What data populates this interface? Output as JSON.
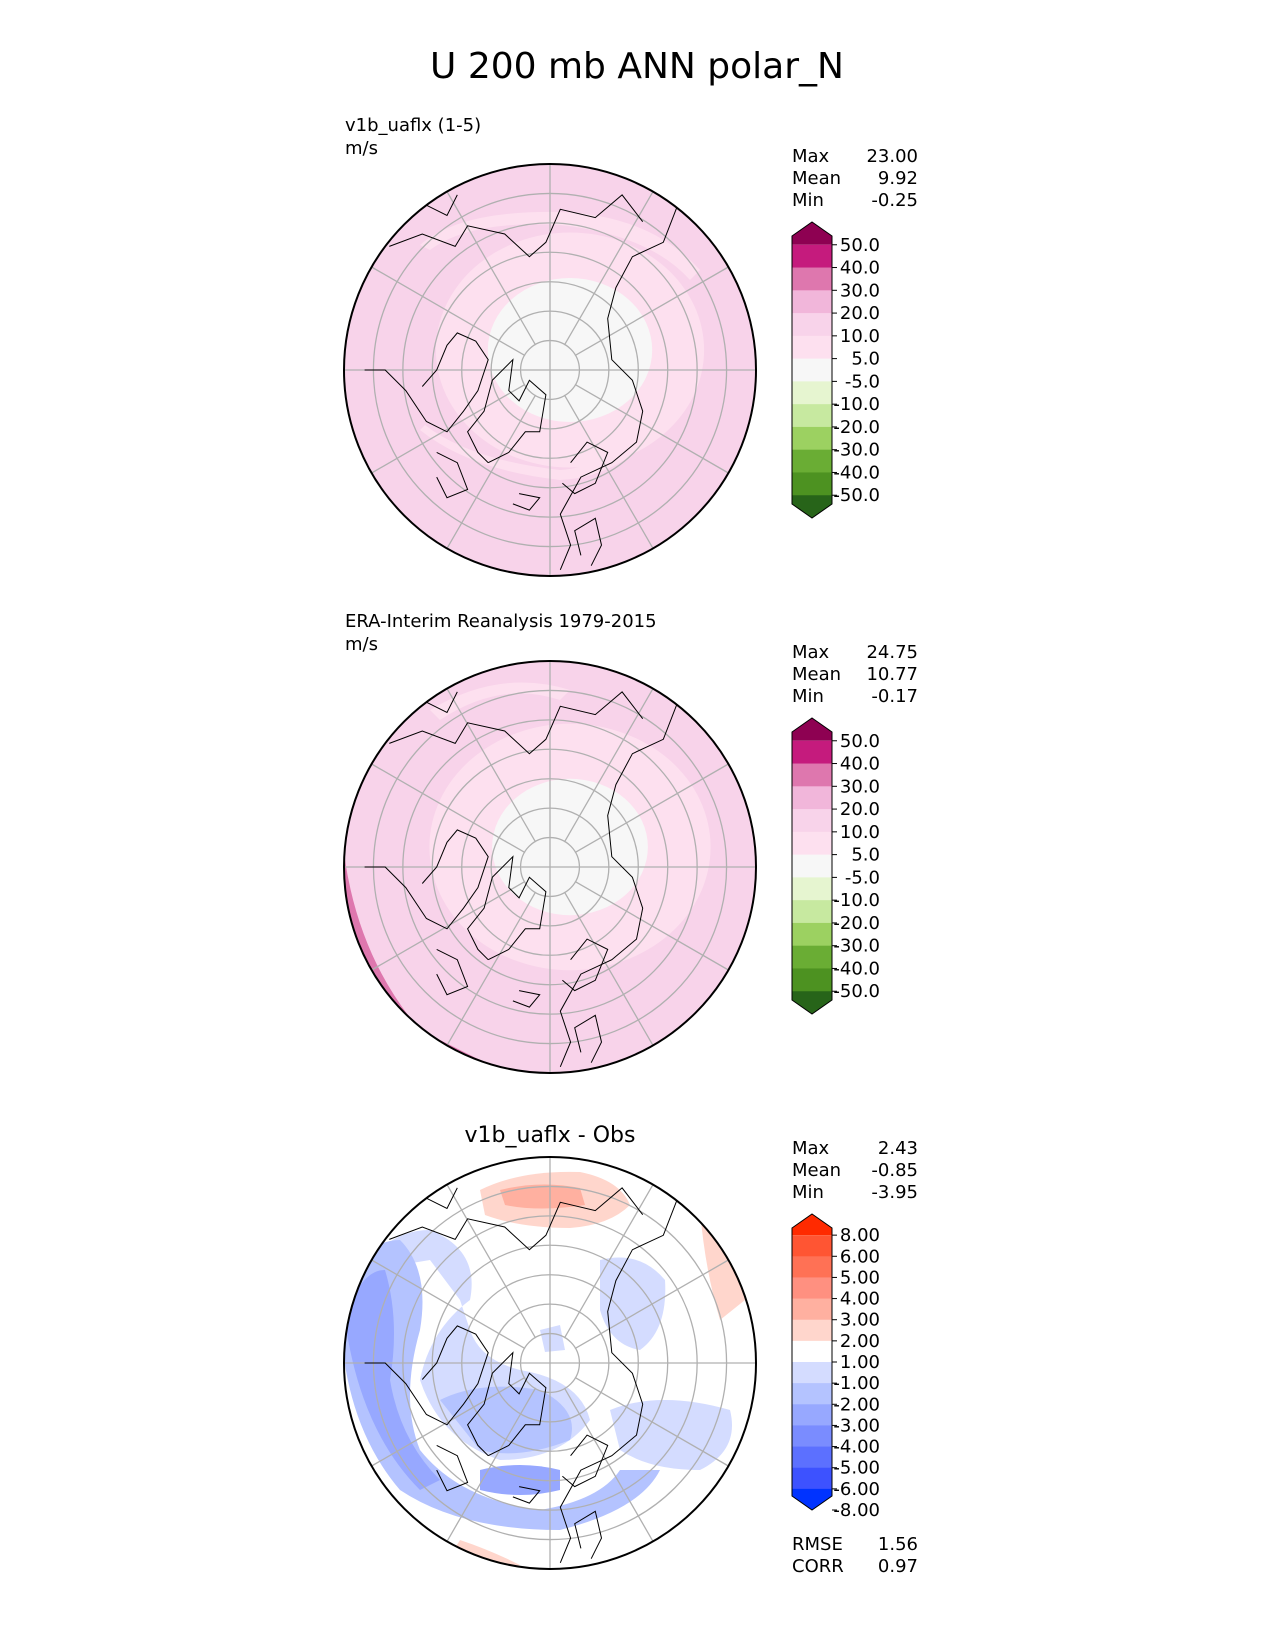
{
  "figure": {
    "title": "U 200 mb ANN polar_N"
  },
  "stat_labels": {
    "max": "Max",
    "mean": "Mean",
    "min": "Min",
    "rmse": "RMSE",
    "corr": "CORR"
  },
  "colors": {
    "div_pink_green": [
      "#8e0152",
      "#c51b7d",
      "#de77ae",
      "#f1b6da",
      "#f8d3ea",
      "#fde0ef",
      "#f7f7f7",
      "#e6f5d0",
      "#c7e9a0",
      "#9cd161",
      "#6aad34",
      "#4d9221",
      "#276419"
    ],
    "div_red_blue": [
      "#ff2a00",
      "#ff5533",
      "#ff7155",
      "#ff9080",
      "#ffb0a0",
      "#ffd6cc",
      "#ffffff",
      "#d4dcff",
      "#b4c3ff",
      "#97a8ff",
      "#7a8cff",
      "#5c70ff",
      "#3d52ff",
      "#0033ff"
    ],
    "continent_line": "#000000",
    "grid_line": "#b0b0b0"
  },
  "chart_data": [
    {
      "type": "contour-map",
      "projection": "polar_N",
      "title": "v1b_uaflx (1-5)",
      "units": "m/s",
      "stats": {
        "max": "23.00",
        "mean": "9.92",
        "min": "-0.25"
      },
      "colorbar": {
        "levels": [
          "50.0",
          "40.0",
          "30.0",
          "20.0",
          "10.0",
          "5.0",
          "-5.0",
          "-10.0",
          "-20.0",
          "-30.0",
          "-40.0",
          "-50.0"
        ],
        "palette": "div_pink_green",
        "extend": "both"
      },
      "field_levels": [
        {
          "class": 4,
          "extent": 1.0
        },
        {
          "class": 5,
          "extent": 0.62
        },
        {
          "class": 6,
          "extent": 0.38
        }
      ]
    },
    {
      "type": "contour-map",
      "projection": "polar_N",
      "title": "ERA-Interim Reanalysis 1979-2015",
      "units": "m/s",
      "stats": {
        "max": "24.75",
        "mean": "10.77",
        "min": "-0.17"
      },
      "colorbar": {
        "levels": [
          "50.0",
          "40.0",
          "30.0",
          "20.0",
          "10.0",
          "5.0",
          "-5.0",
          "-10.0",
          "-20.0",
          "-30.0",
          "-40.0",
          "-50.0"
        ],
        "palette": "div_pink_green",
        "extend": "both"
      },
      "field_levels": [
        {
          "class": 4,
          "extent": 1.0
        },
        {
          "class": 5,
          "extent": 0.65
        },
        {
          "class": 6,
          "extent": 0.36
        }
      ]
    },
    {
      "type": "contour-map",
      "projection": "polar_N",
      "title": "v1b_uaflx - Obs",
      "units": "",
      "stats": {
        "max": "2.43",
        "mean": "-0.85",
        "min": "-3.95"
      },
      "extra_stats": {
        "rmse": "1.56",
        "corr": "0.97"
      },
      "colorbar": {
        "levels": [
          "8.00",
          "6.00",
          "5.00",
          "4.00",
          "3.00",
          "2.00",
          "1.00",
          "-1.00",
          "-2.00",
          "-3.00",
          "-4.00",
          "-5.00",
          "-6.00",
          "-8.00"
        ],
        "palette": "div_red_blue",
        "extend": "both"
      },
      "field_levels": [
        {
          "class": 6,
          "extent": 1.0
        }
      ]
    }
  ]
}
